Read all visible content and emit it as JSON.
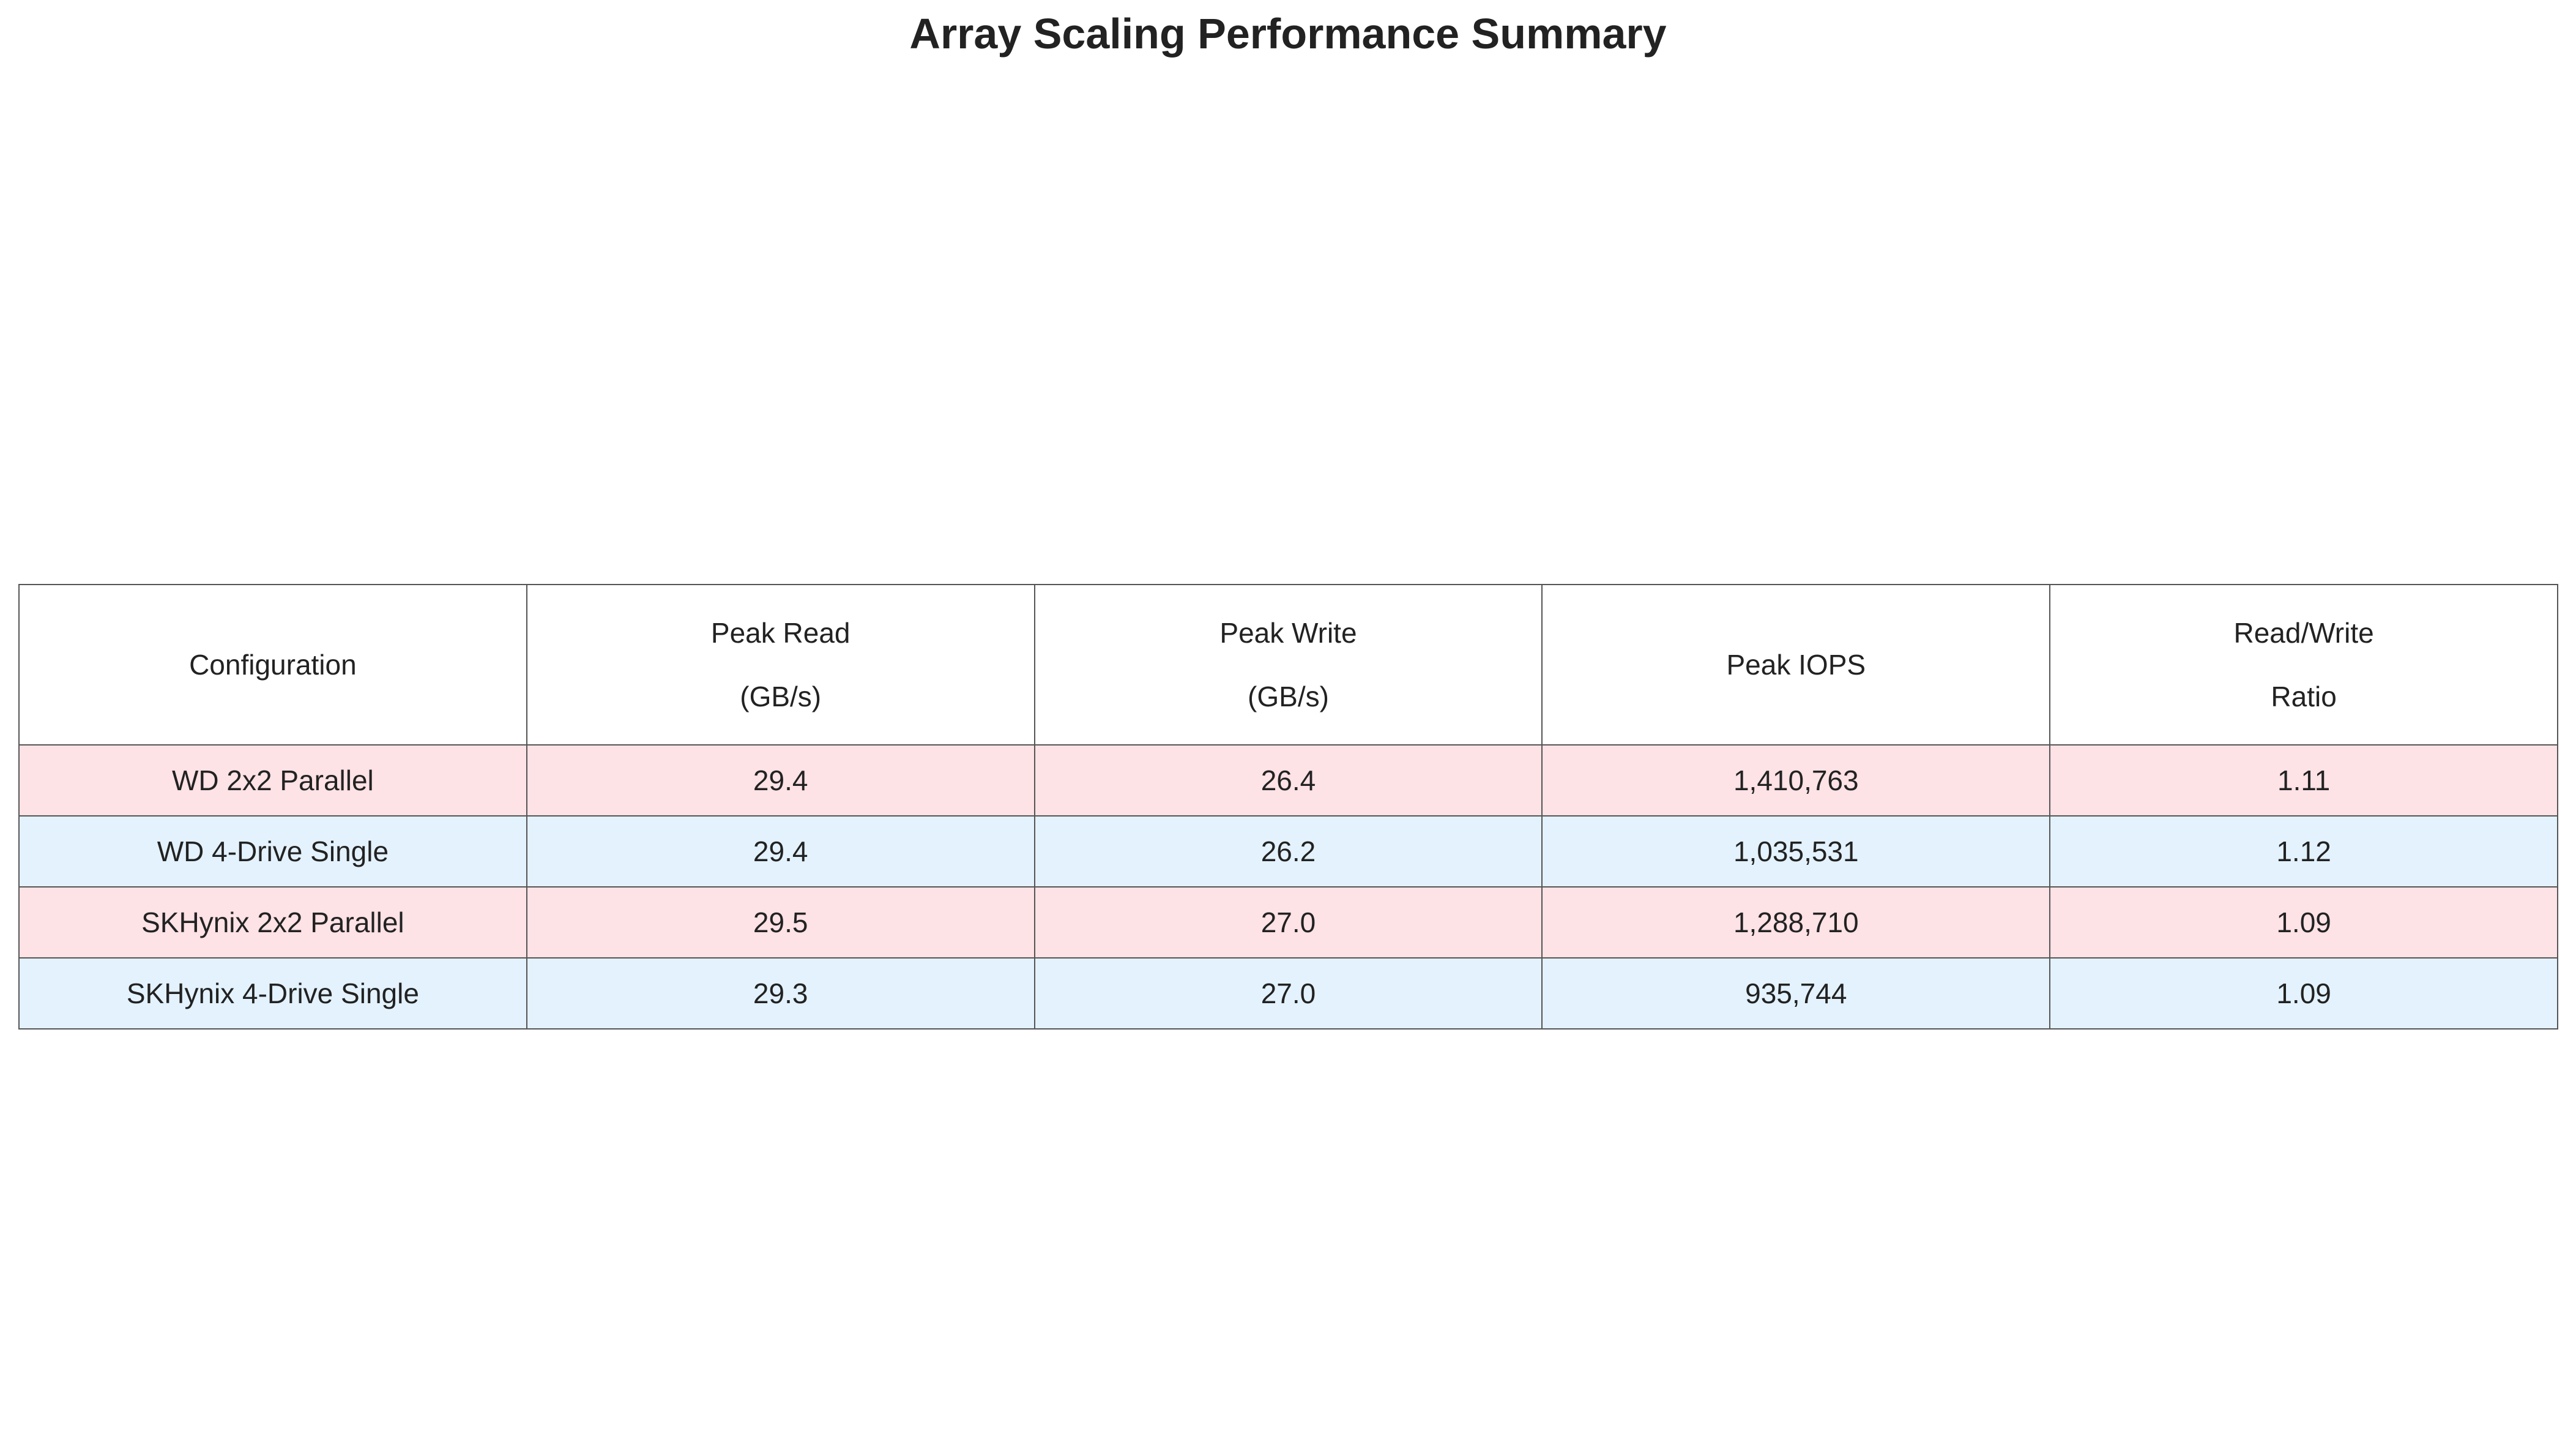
{
  "chart_data": {
    "type": "table",
    "title": "Array Scaling Performance Summary",
    "columns": [
      [
        "Configuration"
      ],
      [
        "Peak Read",
        "(GB/s)"
      ],
      [
        "Peak Write",
        "(GB/s)"
      ],
      [
        "Peak IOPS"
      ],
      [
        "Read/Write",
        "Ratio"
      ]
    ],
    "rows": [
      {
        "cells": [
          "WD 2x2 Parallel",
          "29.4",
          "26.4",
          "1,410,763",
          "1.11"
        ],
        "color": "#fde2e6"
      },
      {
        "cells": [
          "WD 4-Drive Single",
          "29.4",
          "26.2",
          "1,035,531",
          "1.12"
        ],
        "color": "#e3f2fd"
      },
      {
        "cells": [
          "SKHynix 2x2 Parallel",
          "29.5",
          "27.0",
          "1,288,710",
          "1.09"
        ],
        "color": "#fde2e6"
      },
      {
        "cells": [
          "SKHynix 4-Drive Single",
          "29.3",
          "27.0",
          "935,744",
          "1.09"
        ],
        "color": "#e3f2fd"
      }
    ],
    "header_color": "#ffffff",
    "border_color": "#555555"
  }
}
